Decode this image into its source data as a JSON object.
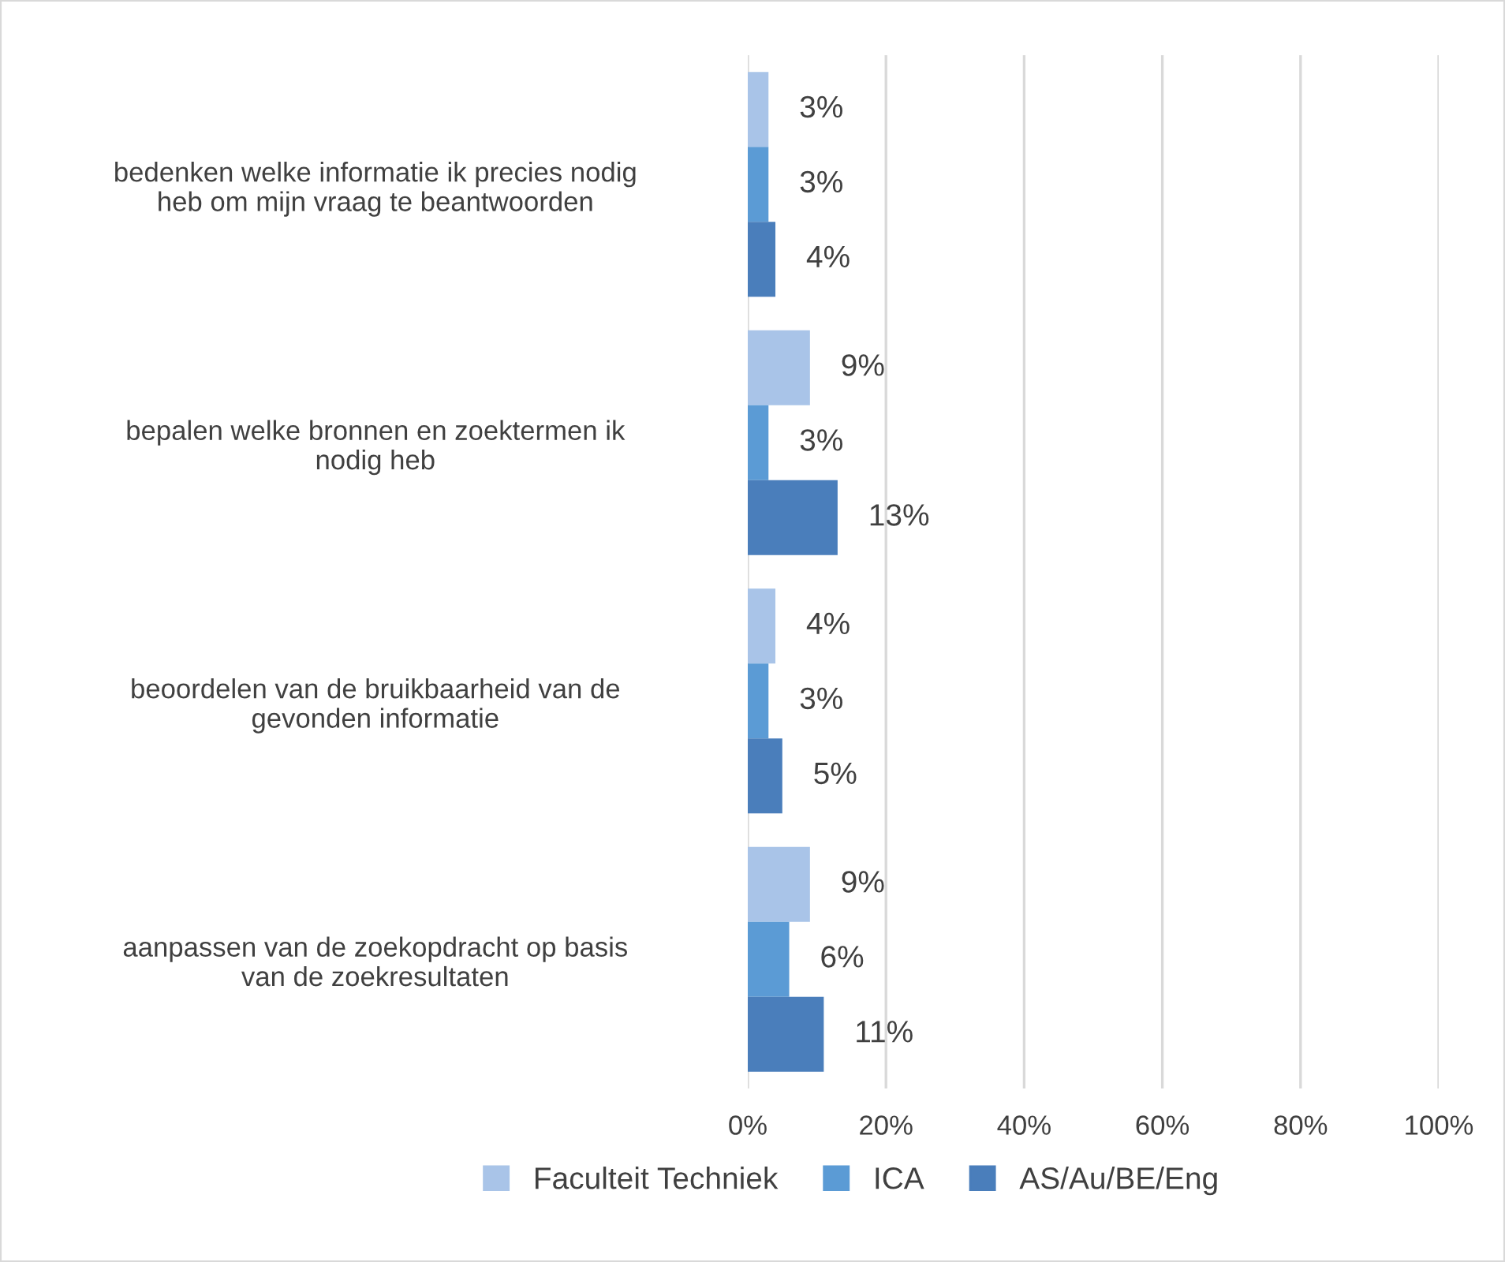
{
  "chart_data": {
    "type": "bar",
    "orientation": "horizontal",
    "categories": [
      "bedenken welke informatie ik precies nodig\nheb om mijn vraag te beantwoorden",
      "bepalen welke bronnen en zoektermen ik\nnodig heb",
      "beoordelen van de bruikbaarheid van de\ngevonden informatie",
      "aanpassen van de zoekopdracht op basis\nvan de zoekresultaten"
    ],
    "series": [
      {
        "name": "Faculteit Techniek",
        "color": "#a9c4e8",
        "values": [
          3,
          9,
          4,
          9
        ],
        "value_labels": [
          "3%",
          "9%",
          "4%",
          "9%"
        ]
      },
      {
        "name": "ICA",
        "color": "#5b9bd5",
        "values": [
          3,
          3,
          3,
          6
        ],
        "value_labels": [
          "3%",
          "3%",
          "3%",
          "6%"
        ]
      },
      {
        "name": "AS/Au/BE/Eng",
        "color": "#4a7ebb",
        "values": [
          4,
          13,
          5,
          11
        ],
        "value_labels": [
          "4%",
          "13%",
          "5%",
          "11%"
        ]
      }
    ],
    "xlim": [
      0,
      100
    ],
    "xticks": [
      {
        "value": 0,
        "label": "0%"
      },
      {
        "value": 20,
        "label": "20%"
      },
      {
        "value": 40,
        "label": "40%"
      },
      {
        "value": 60,
        "label": "60%"
      },
      {
        "value": 80,
        "label": "80%"
      },
      {
        "value": 100,
        "label": "100%"
      }
    ],
    "grid": "x",
    "legend": "bottom"
  }
}
